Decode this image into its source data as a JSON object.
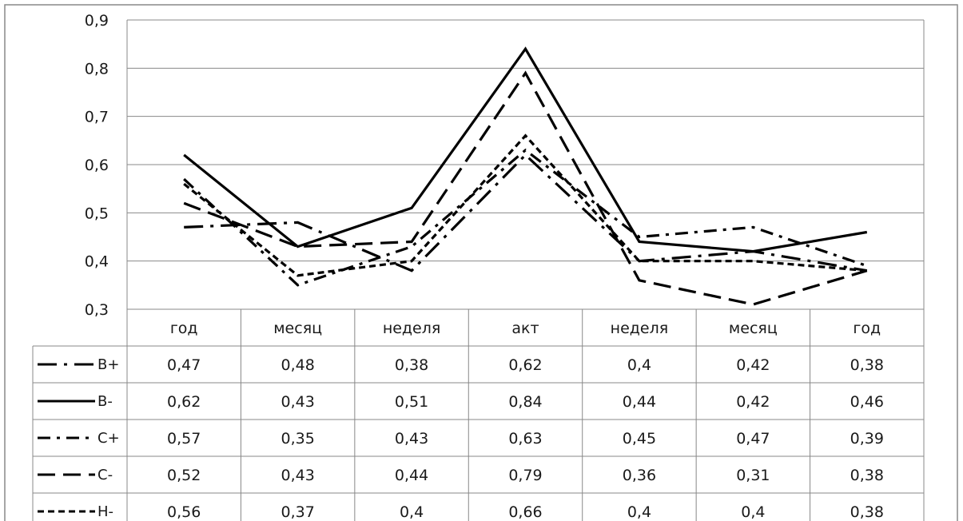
{
  "chart_data": {
    "type": "line",
    "title": "",
    "xlabel": "",
    "ylabel": "",
    "ylim": [
      0.3,
      0.9
    ],
    "y_ticks": [
      "0,3",
      "0,4",
      "0,5",
      "0,6",
      "0,7",
      "0,8",
      "0,9"
    ],
    "y_tick_values": [
      0.3,
      0.4,
      0.5,
      0.6,
      0.7,
      0.8,
      0.9
    ],
    "grid": "horizontal",
    "legend": "bottom data table",
    "categories": [
      "год",
      "месяц",
      "неделя",
      "акт",
      "неделя",
      "месяц",
      "год"
    ],
    "series": [
      {
        "name": "B+",
        "style": "long-dash-dot",
        "values": [
          0.47,
          0.48,
          0.38,
          0.62,
          0.4,
          0.42,
          0.38
        ],
        "labels": [
          "0,47",
          "0,48",
          "0,38",
          "0,62",
          "0,4",
          "0,42",
          "0,38"
        ]
      },
      {
        "name": "B-",
        "style": "solid",
        "values": [
          0.62,
          0.43,
          0.51,
          0.84,
          0.44,
          0.42,
          0.46
        ],
        "labels": [
          "0,62",
          "0,43",
          "0,51",
          "0,84",
          "0,44",
          "0,42",
          "0,46"
        ]
      },
      {
        "name": "C+",
        "style": "dash-dot",
        "values": [
          0.57,
          0.35,
          0.43,
          0.63,
          0.45,
          0.47,
          0.39
        ],
        "labels": [
          "0,57",
          "0,35",
          "0,43",
          "0,63",
          "0,45",
          "0,47",
          "0,39"
        ]
      },
      {
        "name": "C-",
        "style": "long-dash",
        "values": [
          0.52,
          0.43,
          0.44,
          0.79,
          0.36,
          0.31,
          0.38
        ],
        "labels": [
          "0,52",
          "0,43",
          "0,44",
          "0,79",
          "0,36",
          "0,31",
          "0,38"
        ]
      },
      {
        "name": "H-",
        "style": "short-dash",
        "values": [
          0.56,
          0.37,
          0.4,
          0.66,
          0.4,
          0.4,
          0.38
        ],
        "labels": [
          "0,56",
          "0,37",
          "0,4",
          "0,66",
          "0,4",
          "0,4",
          "0,38"
        ]
      }
    ]
  },
  "colors": {
    "line": "#000000",
    "grid": "#888888",
    "frame": "#888888"
  }
}
